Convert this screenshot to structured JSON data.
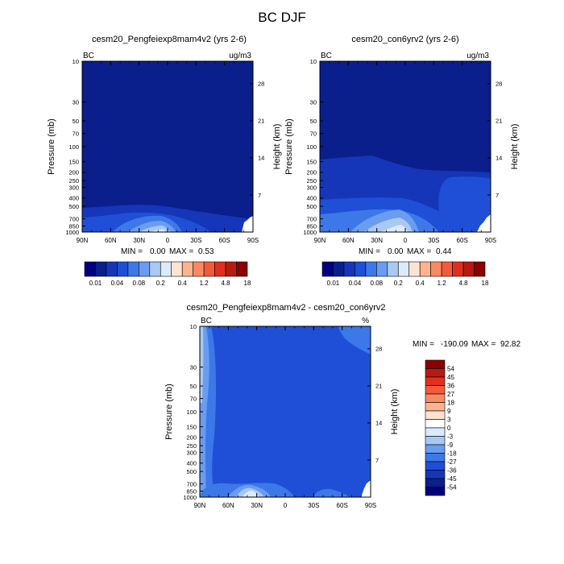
{
  "main_title": "BC DJF",
  "colors": {
    "deep_blue": "#0a1e8c",
    "mid_blue": "#1536b8",
    "blue": "#1f4fd6",
    "light_blue": "#3c78e8",
    "pale_blue": "#a9c8f2",
    "white": "#ffffff",
    "frame": "#000000"
  },
  "chart_data": [
    {
      "type": "heatmap",
      "title": "cesm20_Pengfeiexp8mam4v2 (yrs 2-6)",
      "corner_left": "BC",
      "corner_right": "ug/m3",
      "ylabel": "Pressure (mb)",
      "y2label": "Height (km)",
      "x_ticks": [
        "90N",
        "60N",
        "30N",
        "0",
        "30S",
        "60S",
        "90S"
      ],
      "y_ticks": [
        "10",
        "30",
        "50",
        "70",
        "100",
        "150",
        "200",
        "250",
        "300",
        "400",
        "500",
        "700",
        "850",
        "1000"
      ],
      "height_ticks": [
        "28",
        "21",
        "14",
        "7"
      ],
      "stats": {
        "min_label": "MIN =",
        "min": "0.00",
        "max_label": "MAX =",
        "max": "0.53"
      },
      "colorbar": {
        "orientation": "horizontal",
        "labels": [
          "0.01",
          "0.04",
          "0.08",
          "0.2",
          "0.4",
          "1.2",
          "4.8",
          "18"
        ],
        "colors": [
          "#00007f",
          "#0a1e8c",
          "#1536b8",
          "#1f4fd6",
          "#3c78e8",
          "#6a9cf0",
          "#a9c8f2",
          "#dcebfb",
          "#fde4d2",
          "#fbb48f",
          "#f88a63",
          "#f45a3a",
          "#e0301d",
          "#b81a12",
          "#8b0000"
        ]
      }
    },
    {
      "type": "heatmap",
      "title": "cesm20_con6yrv2 (yrs 2-6)",
      "corner_left": "BC",
      "corner_right": "ug/m3",
      "ylabel": "Pressure (mb)",
      "y2label": "Height (km)",
      "x_ticks": [
        "90N",
        "60N",
        "30N",
        "0",
        "30S",
        "60S",
        "90S"
      ],
      "y_ticks": [
        "10",
        "30",
        "50",
        "70",
        "100",
        "150",
        "200",
        "250",
        "300",
        "400",
        "500",
        "700",
        "850",
        "1000"
      ],
      "height_ticks": [
        "28",
        "21",
        "14",
        "7"
      ],
      "stats": {
        "min_label": "MIN =",
        "min": "0.00",
        "max_label": "MAX =",
        "max": "0.44"
      },
      "colorbar": {
        "orientation": "horizontal",
        "labels": [
          "0.01",
          "0.04",
          "0.08",
          "0.2",
          "0.4",
          "1.2",
          "4.8",
          "18"
        ],
        "colors": [
          "#00007f",
          "#0a1e8c",
          "#1536b8",
          "#1f4fd6",
          "#3c78e8",
          "#6a9cf0",
          "#a9c8f2",
          "#dcebfb",
          "#fde4d2",
          "#fbb48f",
          "#f88a63",
          "#f45a3a",
          "#e0301d",
          "#b81a12",
          "#8b0000"
        ]
      }
    },
    {
      "type": "heatmap",
      "title": "cesm20_Pengfeiexp8mam4v2 - cesm20_con6yrv2",
      "corner_left": "BC",
      "corner_right": "%",
      "ylabel": "Pressure (mb)",
      "y2label": "Height (km)",
      "x_ticks": [
        "90N",
        "60N",
        "30N",
        "0",
        "30S",
        "60S",
        "90S"
      ],
      "y_ticks": [
        "10",
        "30",
        "50",
        "70",
        "100",
        "150",
        "200",
        "250",
        "300",
        "400",
        "500",
        "700",
        "850",
        "1000"
      ],
      "height_ticks": [
        "28",
        "21",
        "14",
        "7"
      ],
      "stats": {
        "min_label": "MIN =",
        "min": "-190.09",
        "max_label": "MAX =",
        "max": "92.82"
      },
      "colorbar": {
        "orientation": "vertical",
        "labels": [
          "54",
          "45",
          "36",
          "27",
          "18",
          "9",
          "3",
          "0",
          "-3",
          "-9",
          "-18",
          "-27",
          "-36",
          "-45",
          "-54"
        ],
        "colors": [
          "#8b0000",
          "#b81a12",
          "#e0301d",
          "#f45a3a",
          "#f88a63",
          "#fbb48f",
          "#fde4d2",
          "#ffffff",
          "#dcebfb",
          "#a9c8f2",
          "#6a9cf0",
          "#3c78e8",
          "#1f4fd6",
          "#1536b8",
          "#0a1e8c",
          "#00007f"
        ]
      }
    }
  ]
}
